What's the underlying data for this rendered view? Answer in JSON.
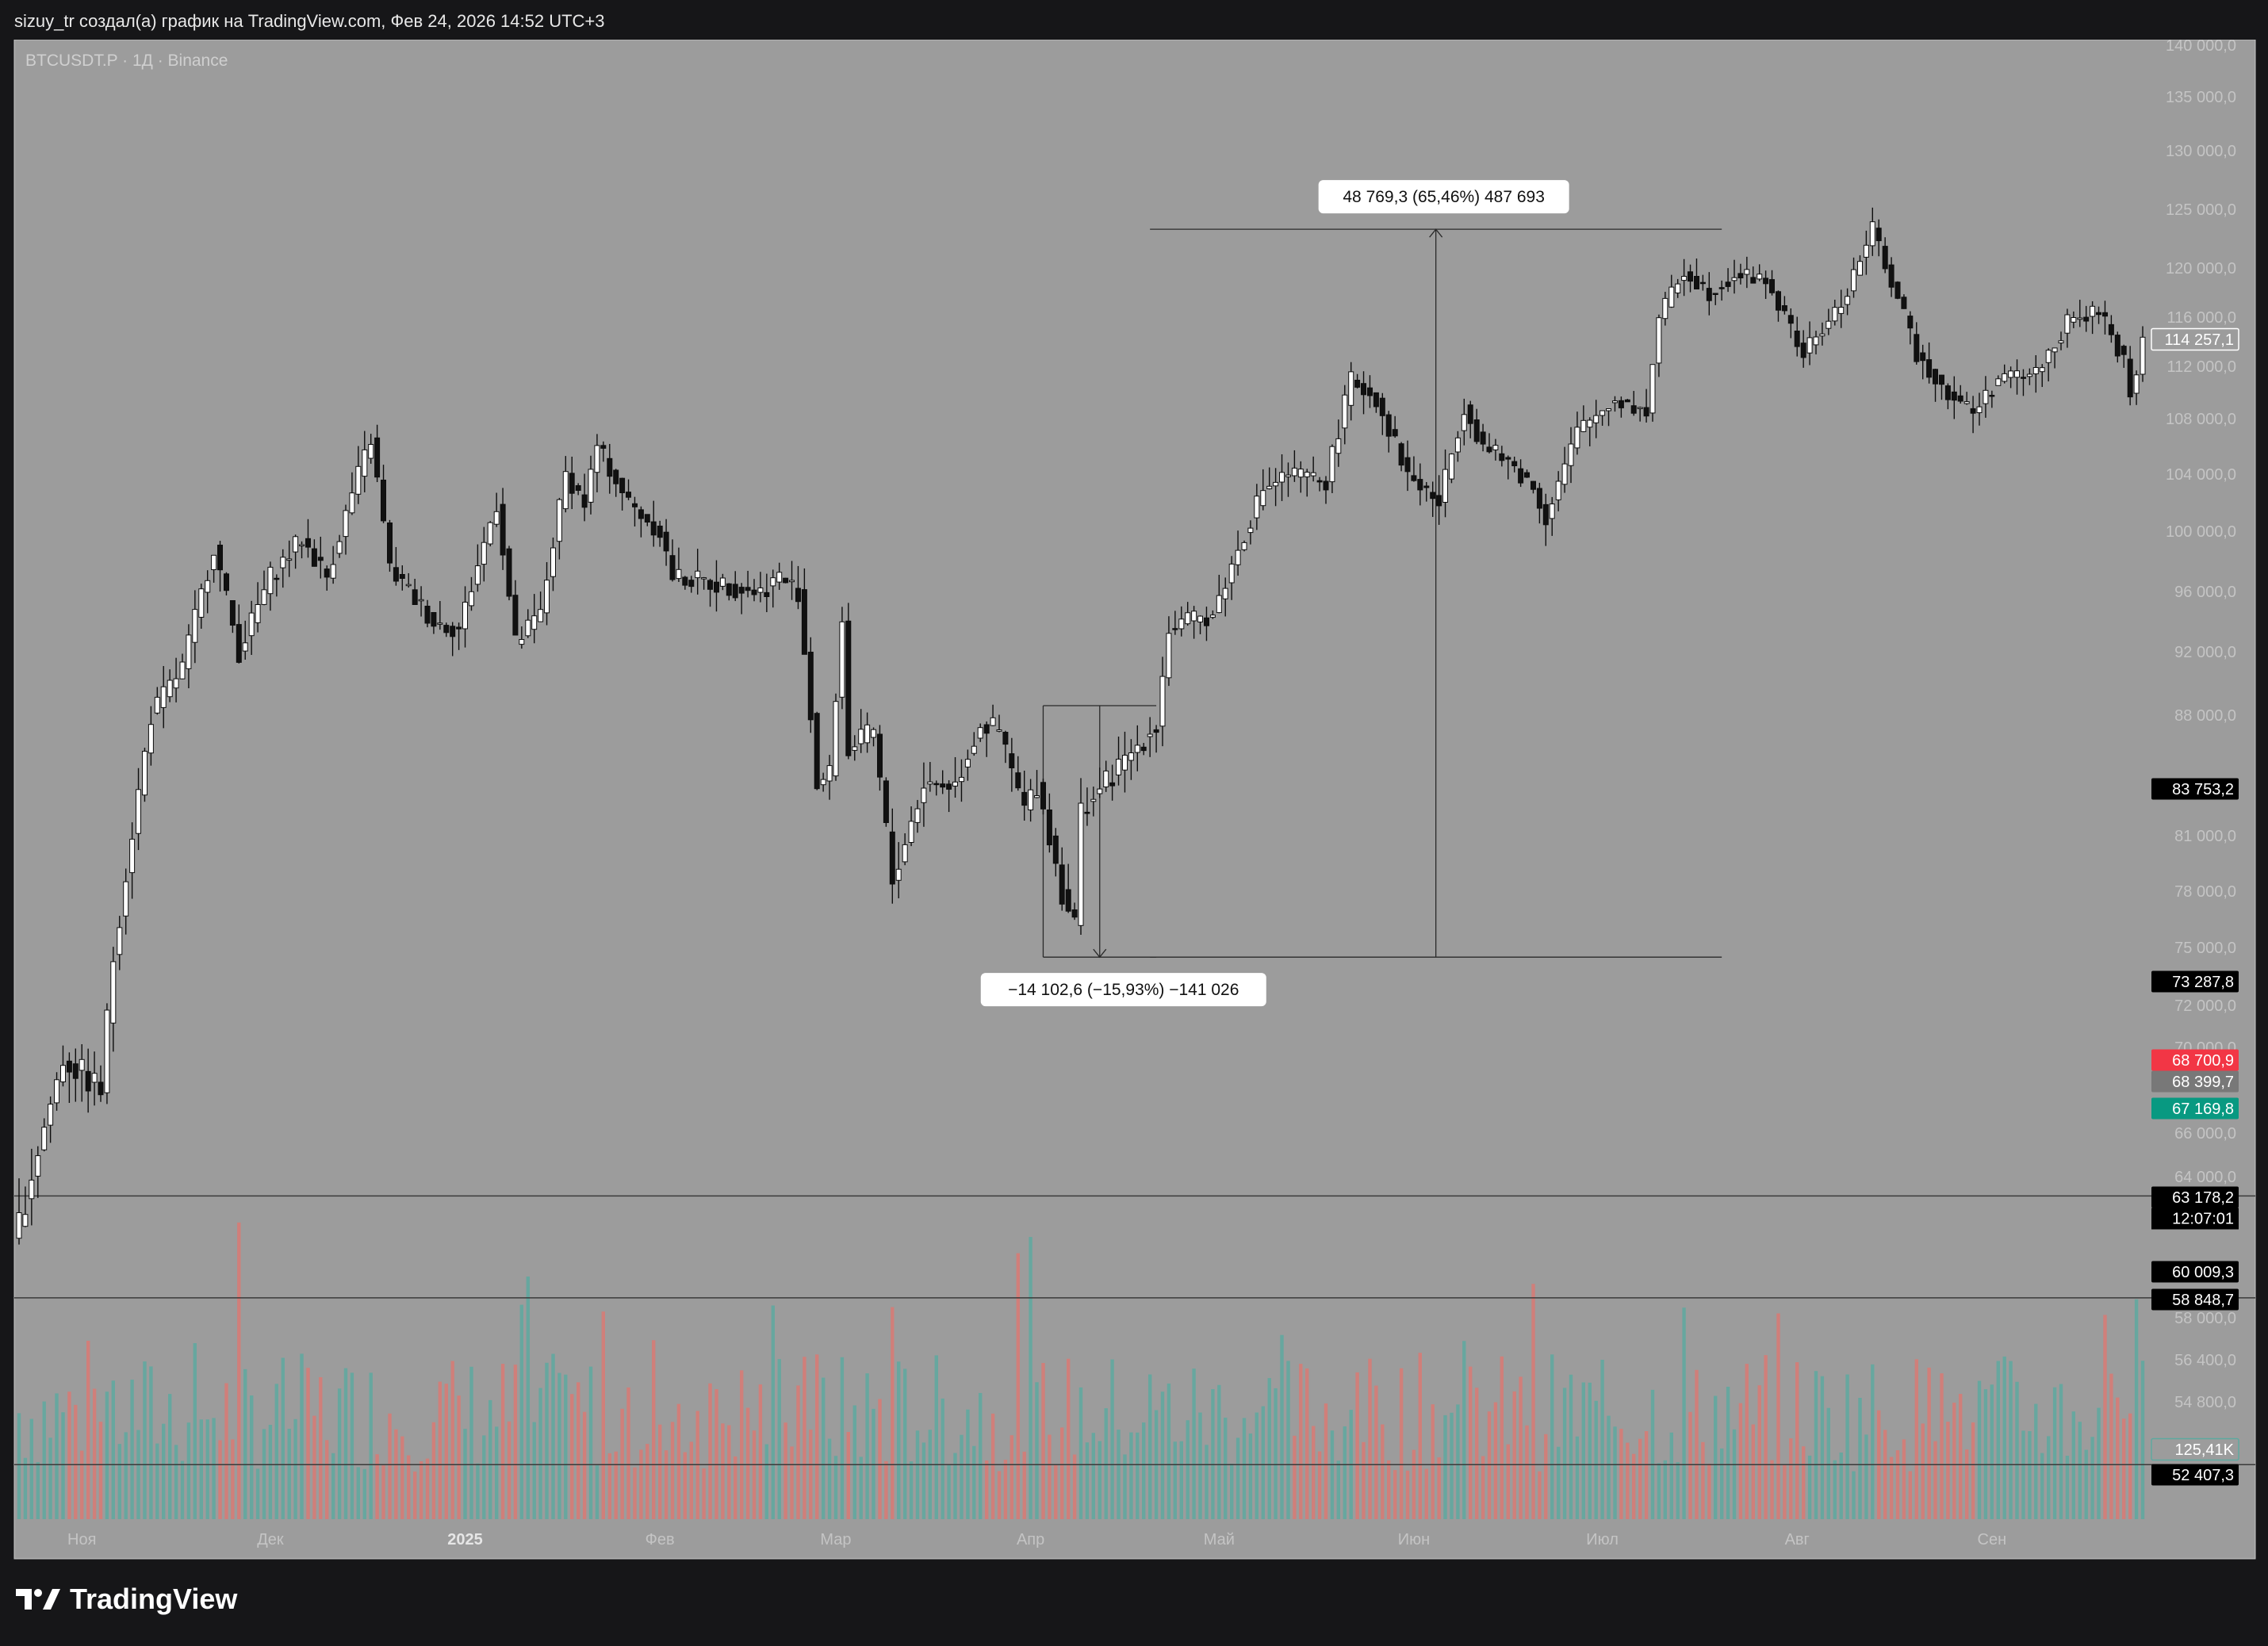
{
  "header": {
    "attribution": "sizuy_tr создал(а) график на TradingView.com, Фев 24, 2026 14:52 UTC+3"
  },
  "footer": {
    "brand": "TradingView"
  },
  "chart_data": {
    "type": "candlestick",
    "symbol_label": "BTCUSDT.P · 1Д · Binance",
    "y_ticks": [
      "140 000,0",
      "135 000,0",
      "130 000,0",
      "125 000,0",
      "120 000,0",
      "116 000,0",
      "112 000,0",
      "108 000,0",
      "104 000,0",
      "100 000,0",
      "96 000,0",
      "92 000,0",
      "88 000,0",
      "81 000,0",
      "78 000,0",
      "75 000,0",
      "72 000,0",
      "70 000,0",
      "66 000,0",
      "64 000,0",
      "58 000,0",
      "56 400,0",
      "54 800,0"
    ],
    "y_tick_values": [
      140000,
      135000,
      130000,
      125000,
      120000,
      116000,
      112000,
      108000,
      104000,
      100000,
      96000,
      92000,
      88000,
      81000,
      78000,
      75000,
      72000,
      70000,
      66000,
      64000,
      58000,
      56400,
      54800
    ],
    "x_labels": [
      {
        "text": "Ноя",
        "date": "2024-11-01",
        "bold": false
      },
      {
        "text": "Дек",
        "date": "2024-12-01",
        "bold": false
      },
      {
        "text": "2025",
        "date": "2025-01-01",
        "bold": true
      },
      {
        "text": "Фев",
        "date": "2025-02-01",
        "bold": false
      },
      {
        "text": "Мар",
        "date": "2025-03-01",
        "bold": false
      },
      {
        "text": "Апр",
        "date": "2025-04-01",
        "bold": false
      },
      {
        "text": "Май",
        "date": "2025-05-01",
        "bold": false
      },
      {
        "text": "Июн",
        "date": "2025-06-01",
        "bold": false
      },
      {
        "text": "Июл",
        "date": "2025-07-01",
        "bold": false
      },
      {
        "text": "Авг",
        "date": "2025-08-01",
        "bold": false
      },
      {
        "text": "Сен",
        "date": "2025-09-01",
        "bold": false
      }
    ],
    "price_path": {
      "start_date": "2024-10-22",
      "end_date": "2025-09-25",
      "anchors": [
        [
          "2024-10-22",
          62000
        ],
        [
          "2024-10-29",
          69500
        ],
        [
          "2024-11-04",
          68000
        ],
        [
          "2024-11-06",
          74500
        ],
        [
          "2024-11-12",
          88000
        ],
        [
          "2024-11-17",
          91000
        ],
        [
          "2024-11-22",
          99000
        ],
        [
          "2024-11-26",
          92000
        ],
        [
          "2024-12-01",
          97000
        ],
        [
          "2024-12-06",
          99500
        ],
        [
          "2024-12-10",
          97000
        ],
        [
          "2024-12-15",
          104000
        ],
        [
          "2024-12-17",
          106500
        ],
        [
          "2024-12-20",
          97500
        ],
        [
          "2024-12-27",
          94000
        ],
        [
          "2024-12-31",
          93500
        ],
        [
          "2025-01-06",
          102000
        ],
        [
          "2025-01-09",
          92500
        ],
        [
          "2025-01-13",
          94500
        ],
        [
          "2025-01-17",
          104000
        ],
        [
          "2025-01-20",
          102000
        ],
        [
          "2025-01-22",
          106000
        ],
        [
          "2025-01-27",
          102000
        ],
        [
          "2025-02-01",
          100000
        ],
        [
          "2025-02-03",
          97000
        ],
        [
          "2025-02-10",
          96500
        ],
        [
          "2025-02-17",
          96000
        ],
        [
          "2025-02-20",
          97000
        ],
        [
          "2025-02-23",
          96000
        ],
        [
          "2025-02-26",
          84000
        ],
        [
          "2025-02-28",
          84500
        ],
        [
          "2025-03-02",
          94000
        ],
        [
          "2025-03-03",
          86000
        ],
        [
          "2025-03-07",
          87000
        ],
        [
          "2025-03-10",
          78500
        ],
        [
          "2025-03-15",
          84000
        ],
        [
          "2025-03-20",
          84000
        ],
        [
          "2025-03-24",
          87500
        ],
        [
          "2025-03-27",
          87000
        ],
        [
          "2025-03-31",
          82500
        ],
        [
          "2025-04-02",
          84000
        ],
        [
          "2025-04-06",
          78000
        ],
        [
          "2025-04-08",
          76300
        ],
        [
          "2025-04-09",
          82500
        ],
        [
          "2025-04-14",
          84500
        ],
        [
          "2025-04-21",
          87500
        ],
        [
          "2025-04-23",
          93500
        ],
        [
          "2025-04-30",
          94500
        ],
        [
          "2025-05-08",
          103000
        ],
        [
          "2025-05-12",
          104000
        ],
        [
          "2025-05-18",
          103500
        ],
        [
          "2025-05-22",
          111000
        ],
        [
          "2025-05-26",
          109500
        ],
        [
          "2025-05-31",
          104000
        ],
        [
          "2025-06-05",
          102000
        ],
        [
          "2025-06-09",
          109000
        ],
        [
          "2025-06-12",
          106000
        ],
        [
          "2025-06-17",
          104500
        ],
        [
          "2025-06-20",
          103000
        ],
        [
          "2025-06-22",
          101000
        ],
        [
          "2025-06-27",
          107000
        ],
        [
          "2025-07-03",
          109500
        ],
        [
          "2025-07-08",
          108500
        ],
        [
          "2025-07-10",
          116000
        ],
        [
          "2025-07-14",
          119800
        ],
        [
          "2025-07-18",
          118000
        ],
        [
          "2025-07-22",
          119500
        ],
        [
          "2025-07-27",
          119000
        ],
        [
          "2025-08-01",
          114000
        ],
        [
          "2025-08-02",
          113000
        ],
        [
          "2025-08-08",
          117000
        ],
        [
          "2025-08-13",
          123300
        ],
        [
          "2025-08-17",
          117500
        ],
        [
          "2025-08-20",
          113000
        ],
        [
          "2025-08-25",
          110000
        ],
        [
          "2025-08-29",
          108500
        ],
        [
          "2025-09-02",
          111000
        ],
        [
          "2025-09-08",
          111500
        ],
        [
          "2025-09-13",
          115500
        ],
        [
          "2025-09-18",
          116500
        ],
        [
          "2025-09-22",
          112500
        ],
        [
          "2025-09-23",
          110000
        ],
        [
          "2025-09-24",
          111500
        ],
        [
          "2025-09-25",
          114257
        ]
      ]
    },
    "price_tags": [
      {
        "label": "114 257,1",
        "value": 114257.1,
        "style": "last"
      },
      {
        "label": "83 753,2",
        "value": 83753.2,
        "style": "black"
      },
      {
        "label": "73 287,8",
        "value": 73287.8,
        "style": "black"
      },
      {
        "label": "68 700,9",
        "value": 68700.9,
        "style": "red"
      },
      {
        "label": "68 399,7",
        "value": 68399.7,
        "style": "gray"
      },
      {
        "label": "67 169,8",
        "value": 67169.8,
        "style": "green"
      },
      {
        "label": "63 178,2",
        "value": 63178.2,
        "style": "black",
        "sub": "12:07:01"
      },
      {
        "label": "60 009,3",
        "value": 60009.3,
        "style": "black"
      },
      {
        "label": "58 848,7",
        "value": 58848.7,
        "style": "black"
      },
      {
        "label": "125,41K",
        "value": null,
        "style": "volume"
      },
      {
        "label": "52 407,3",
        "value": 52407.3,
        "style": "black"
      }
    ],
    "horizontal_lines": [
      63178.2,
      58848.7,
      52407.3
    ],
    "measurements": [
      {
        "label": "48 769,3 (65,46%) 487 693",
        "date_start": "2025-04-20",
        "date_end": "2025-07-20",
        "low": 74500,
        "high": 123300,
        "arrow": "up"
      },
      {
        "label": "−14 102,6 (−15,93%) −141 026",
        "date_start": "2025-04-03",
        "date_end": "2025-04-21",
        "low": 74500,
        "high": 88600,
        "arrow": "down"
      }
    ],
    "colors": {
      "plot_bg": "#9c9c9c",
      "up_body": "#ffffff",
      "down_body": "#111111",
      "vol_up": "#5ea9a0",
      "vol_down": "#d97a74",
      "tag_red": "#f23645",
      "tag_green": "#089981",
      "tag_gray": "#787878",
      "tag_black": "#000000"
    }
  }
}
